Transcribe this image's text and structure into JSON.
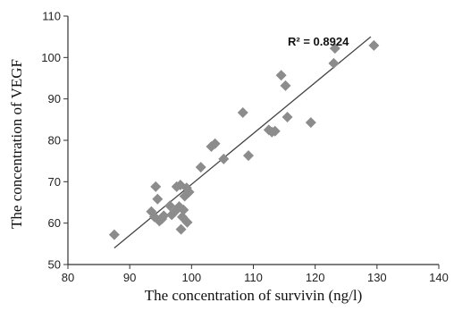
{
  "chart_data": {
    "type": "scatter",
    "xlabel": "The concentration of survivin (ng/l)",
    "ylabel": "The concentration of VEGF",
    "xlim": [
      80,
      140
    ],
    "ylim": [
      50,
      110
    ],
    "xticks": [
      80,
      90,
      100,
      110,
      120,
      130,
      140
    ],
    "yticks": [
      50,
      60,
      70,
      80,
      90,
      100,
      110
    ],
    "grid": false,
    "annotation": "R² = 0.8924",
    "colors": {
      "marker": "#8c8c8c",
      "trendline": "#444444",
      "axis": "#333333"
    },
    "points": [
      {
        "x": 87.5,
        "y": 57.2
      },
      {
        "x": 93.5,
        "y": 62.8
      },
      {
        "x": 94.0,
        "y": 61.5
      },
      {
        "x": 94.2,
        "y": 68.8
      },
      {
        "x": 94.5,
        "y": 65.8
      },
      {
        "x": 94.8,
        "y": 60.5
      },
      {
        "x": 95.2,
        "y": 61.0
      },
      {
        "x": 95.5,
        "y": 61.8
      },
      {
        "x": 96.5,
        "y": 64.2
      },
      {
        "x": 96.8,
        "y": 62.0
      },
      {
        "x": 97.3,
        "y": 62.8
      },
      {
        "x": 97.6,
        "y": 68.8
      },
      {
        "x": 98.0,
        "y": 64.0
      },
      {
        "x": 98.2,
        "y": 69.2
      },
      {
        "x": 98.3,
        "y": 58.5
      },
      {
        "x": 98.5,
        "y": 61.5
      },
      {
        "x": 98.7,
        "y": 63.2
      },
      {
        "x": 98.9,
        "y": 66.5
      },
      {
        "x": 99.2,
        "y": 68.5
      },
      {
        "x": 99.3,
        "y": 60.2
      },
      {
        "x": 99.6,
        "y": 67.5
      },
      {
        "x": 101.5,
        "y": 73.5
      },
      {
        "x": 103.2,
        "y": 78.5
      },
      {
        "x": 103.8,
        "y": 79.2
      },
      {
        "x": 105.2,
        "y": 75.5
      },
      {
        "x": 108.3,
        "y": 86.7
      },
      {
        "x": 109.2,
        "y": 76.3
      },
      {
        "x": 112.5,
        "y": 82.5
      },
      {
        "x": 113.0,
        "y": 82.0
      },
      {
        "x": 113.5,
        "y": 82.2
      },
      {
        "x": 114.5,
        "y": 95.7
      },
      {
        "x": 115.2,
        "y": 93.2
      },
      {
        "x": 115.5,
        "y": 85.6
      },
      {
        "x": 119.3,
        "y": 84.3
      },
      {
        "x": 123.0,
        "y": 98.6
      },
      {
        "x": 123.2,
        "y": 102.2
      },
      {
        "x": 129.5,
        "y": 102.9
      }
    ],
    "trendline": {
      "x": [
        87.5,
        129.0
      ],
      "y": [
        54.0,
        105.0
      ]
    }
  }
}
